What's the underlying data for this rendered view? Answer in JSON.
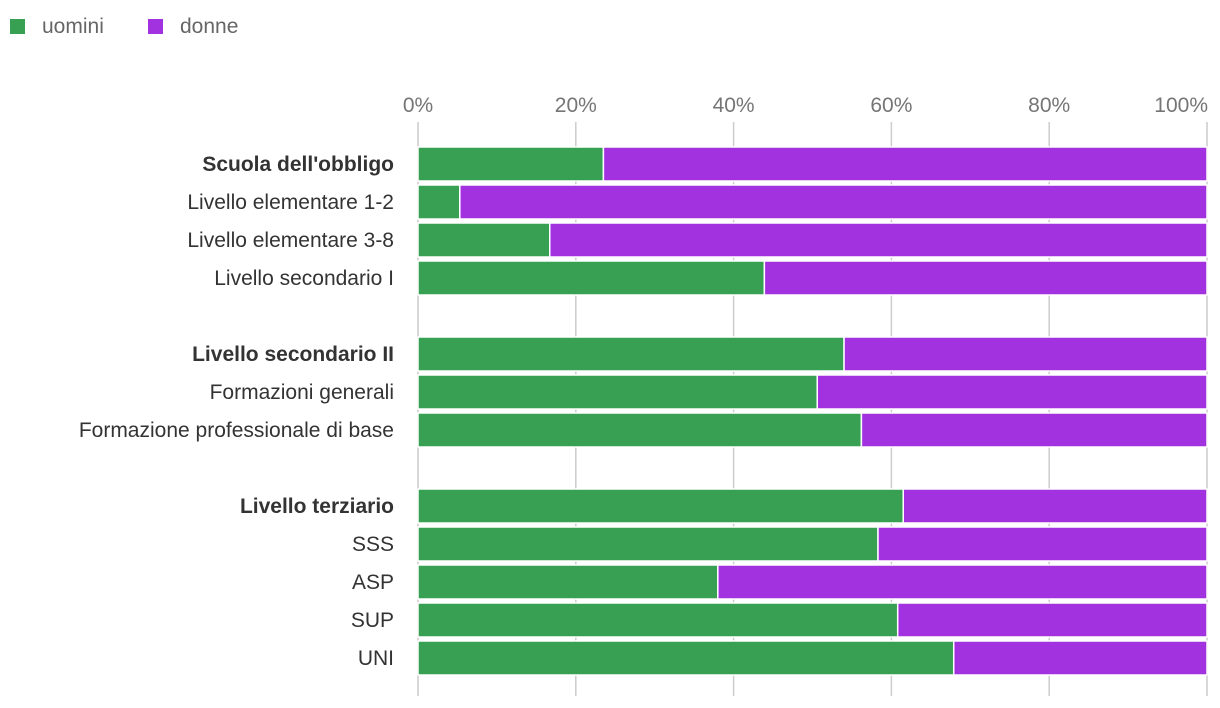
{
  "chart_data": {
    "type": "bar",
    "orientation": "horizontal",
    "stacked": true,
    "normalized": true,
    "categories": [
      {
        "label": "Scuola dell'obbligo",
        "bold": true,
        "group": 0
      },
      {
        "label": "Livello elementare 1-2",
        "bold": false,
        "group": 0
      },
      {
        "label": "Livello elementare 3-8",
        "bold": false,
        "group": 0
      },
      {
        "label": "Livello secondario I",
        "bold": false,
        "group": 0
      },
      {
        "label": "Livello secondario II",
        "bold": true,
        "group": 1
      },
      {
        "label": "Formazioni generali",
        "bold": false,
        "group": 1
      },
      {
        "label": "Formazione professionale di base",
        "bold": false,
        "group": 1
      },
      {
        "label": "Livello terziario",
        "bold": true,
        "group": 2
      },
      {
        "label": "SSS",
        "bold": false,
        "group": 2
      },
      {
        "label": "ASP",
        "bold": false,
        "group": 2
      },
      {
        "label": "SUP",
        "bold": false,
        "group": 2
      },
      {
        "label": "UNI",
        "bold": false,
        "group": 2
      }
    ],
    "series": [
      {
        "name": "uomini",
        "color": "#37a052",
        "values": [
          23.5,
          5.3,
          16.7,
          43.9,
          54.0,
          50.6,
          56.2,
          61.5,
          58.3,
          38.0,
          60.8,
          67.9
        ]
      },
      {
        "name": "donne",
        "color": "#a232e0",
        "values": [
          76.5,
          94.7,
          83.3,
          56.1,
          46.0,
          49.4,
          43.8,
          38.5,
          41.7,
          62.0,
          39.2,
          32.1
        ]
      }
    ],
    "xaxis": {
      "ticks": [
        0,
        20,
        40,
        60,
        80,
        100
      ],
      "tick_labels": [
        "0%",
        "20%",
        "40%",
        "60%",
        "80%",
        "100%"
      ],
      "xlim": [
        0,
        100
      ],
      "position": "top"
    },
    "grid": true,
    "legend": "top-left"
  }
}
